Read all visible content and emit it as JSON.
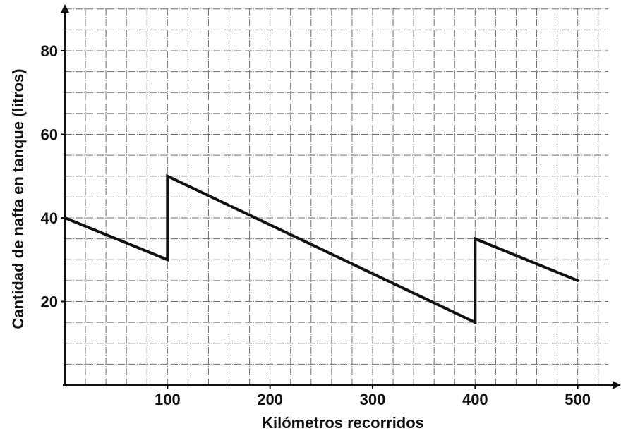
{
  "chart_data": {
    "type": "line",
    "xlabel": "Kilómetros recorridos",
    "ylabel": "Cantidad de nafta en tanque (litros)",
    "x_ticks": [
      100,
      200,
      300,
      400,
      500
    ],
    "y_ticks": [
      20,
      40,
      60,
      80
    ],
    "xlim": [
      0,
      500
    ],
    "ylim": [
      0,
      80
    ],
    "grid": true,
    "series": [
      {
        "x": [
          0,
          100,
          100,
          400,
          400,
          500
        ],
        "y": [
          40,
          30,
          50,
          15,
          35,
          25
        ]
      }
    ]
  }
}
